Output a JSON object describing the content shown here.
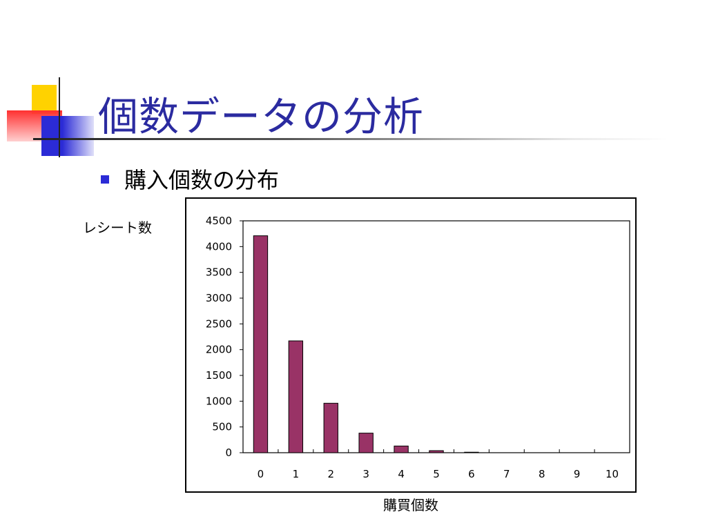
{
  "slide": {
    "title": "個数データの分析",
    "bullet": "購入個数の分布"
  },
  "colors": {
    "title": "#2b2ba0",
    "bullet_marker": "#2b2bd6",
    "bar": "#993366",
    "deco_yellow": "#ffd200",
    "deco_blue": "#2b2bd6",
    "deco_red": "#ff3030"
  },
  "chart_data": {
    "type": "bar",
    "title": "",
    "xlabel": "購買個数",
    "ylabel": "レシート数",
    "categories": [
      "0",
      "1",
      "2",
      "3",
      "4",
      "5",
      "6",
      "7",
      "8",
      "9",
      "10"
    ],
    "values": [
      4210,
      2170,
      960,
      380,
      130,
      40,
      10,
      0,
      0,
      0,
      0
    ],
    "ylim": [
      0,
      4500
    ],
    "yticks": [
      "0",
      "500",
      "1000",
      "1500",
      "2000",
      "2500",
      "3000",
      "3500",
      "4000",
      "4500"
    ],
    "grid": false,
    "legend": "none"
  }
}
